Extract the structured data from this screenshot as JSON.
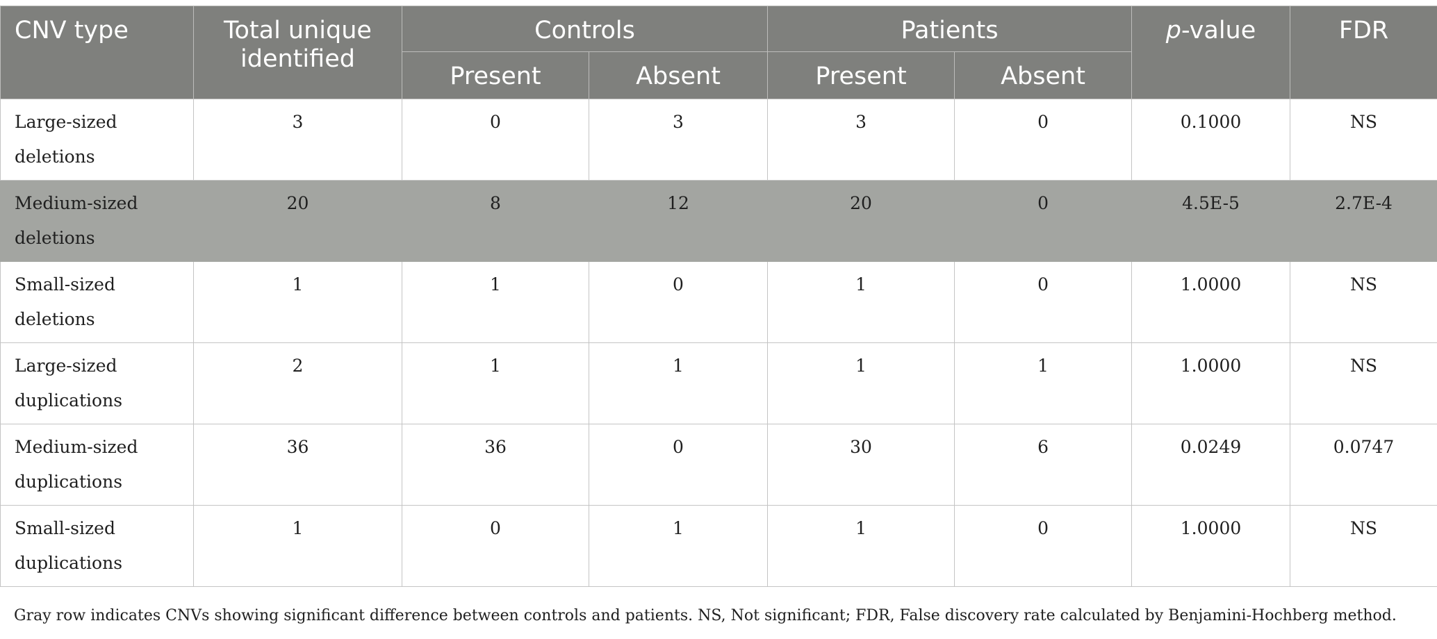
{
  "table": {
    "headers": {
      "cnv_type": "CNV type",
      "total_unique": "Total unique identified",
      "controls": "Controls",
      "patients": "Patients",
      "p_value_italic": "p",
      "p_value_rest": "-value",
      "fdr": "FDR",
      "controls_present": "Present",
      "controls_absent": "Absent",
      "patients_present": "Present",
      "patients_absent": "Absent"
    },
    "rows": [
      {
        "label": "Large-sized deletions",
        "total": "3",
        "c_present": "0",
        "c_absent": "3",
        "p_present": "3",
        "p_absent": "0",
        "p_value": "0.1000",
        "fdr": "NS"
      },
      {
        "label": "Medium-sized deletions",
        "total": "20",
        "c_present": "8",
        "c_absent": "12",
        "p_present": "20",
        "p_absent": "0",
        "p_value": "4.5E-5",
        "fdr": "2.7E-4"
      },
      {
        "label": "Small-sized deletions",
        "total": "1",
        "c_present": "1",
        "c_absent": "0",
        "p_present": "1",
        "p_absent": "0",
        "p_value": "1.0000",
        "fdr": "NS"
      },
      {
        "label": "Large-sized duplications",
        "total": "2",
        "c_present": "1",
        "c_absent": "1",
        "p_present": "1",
        "p_absent": "1",
        "p_value": "1.0000",
        "fdr": "NS"
      },
      {
        "label": "Medium-sized duplications",
        "total": "36",
        "c_present": "36",
        "c_absent": "0",
        "p_present": "30",
        "p_absent": "6",
        "p_value": "0.0249",
        "fdr": "0.0747"
      },
      {
        "label": "Small-sized duplications",
        "total": "1",
        "c_present": "0",
        "c_absent": "1",
        "p_present": "1",
        "p_absent": "0",
        "p_value": "1.0000",
        "fdr": "NS"
      }
    ]
  },
  "footnote": "Gray row indicates CNVs showing significant difference between controls and patients. NS, Not significant; FDR, False discovery rate calculated by Benjamini-Hochberg method.",
  "colors": {
    "header_bg": "#7f807d",
    "highlight_row": "#a3a5a1"
  }
}
